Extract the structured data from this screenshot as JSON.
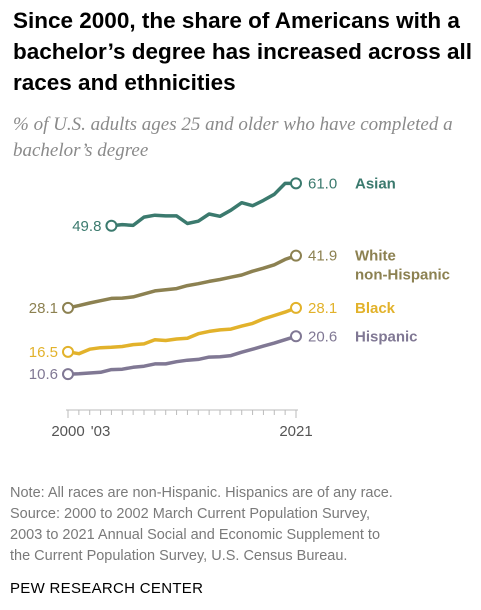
{
  "title": "Since 2000, the share of Americans with a bachelor’s degree has increased across all races and ethnicities",
  "subtitle": "% of U.S. adults ages 25 and older who have completed a bachelor’s degree",
  "note_lines": [
    "Note: All races are non-Hispanic. Hispanics are of any race.",
    "Source: 2000 to 2002 March Current Population Survey,",
    "2003 to 2021 Annual Social and Economic Supplement to",
    "the Current Population Survey, U.S. Census Bureau."
  ],
  "source_org": "PEW RESEARCH CENTER",
  "chart_data": {
    "type": "line",
    "x": [
      2000,
      2001,
      2002,
      2003,
      2004,
      2005,
      2006,
      2007,
      2008,
      2009,
      2010,
      2011,
      2012,
      2013,
      2014,
      2015,
      2016,
      2017,
      2018,
      2019,
      2020,
      2021
    ],
    "xtick_labels": [
      {
        "year": 2000,
        "label": "2000"
      },
      {
        "year": 2003,
        "label": "'03"
      },
      {
        "year": 2021,
        "label": "2021"
      }
    ],
    "ylim": [
      8,
      64
    ],
    "grid": false,
    "series": [
      {
        "name": "Asian",
        "color": "#3b7a6e",
        "start_label": "49.8",
        "end_label": "61.0",
        "values": [
          null,
          null,
          null,
          null,
          49.8,
          50.1,
          49.9,
          52.1,
          52.6,
          52.4,
          52.4,
          50.4,
          51.0,
          52.9,
          52.3,
          53.9,
          55.9,
          55.1,
          56.5,
          58.1,
          61.0,
          61.0
        ]
      },
      {
        "name": "White non-Hispanic",
        "name_lines": [
          "White",
          "non-Hispanic"
        ],
        "color": "#8c8151",
        "start_label": "28.1",
        "end_label": "41.9",
        "values": [
          28.1,
          28.7,
          29.4,
          30.0,
          30.6,
          30.7,
          31.0,
          31.8,
          32.6,
          32.9,
          33.2,
          34.0,
          34.5,
          35.1,
          35.6,
          36.2,
          36.8,
          37.8,
          38.6,
          39.5,
          40.9,
          41.9
        ]
      },
      {
        "name": "Black",
        "color": "#e2b22b",
        "start_label": "16.5",
        "end_label": "28.1",
        "values": [
          16.5,
          16.0,
          17.2,
          17.6,
          17.7,
          17.9,
          18.4,
          18.6,
          19.7,
          19.5,
          19.9,
          20.1,
          21.3,
          21.9,
          22.3,
          22.5,
          23.3,
          24.0,
          25.2,
          26.1,
          27.0,
          28.1
        ]
      },
      {
        "name": "Hispanic",
        "color": "#807894",
        "start_label": "10.6",
        "end_label": "20.6",
        "values": [
          10.6,
          10.7,
          10.9,
          11.1,
          11.8,
          11.9,
          12.4,
          12.7,
          13.3,
          13.3,
          13.9,
          14.3,
          14.5,
          15.1,
          15.2,
          15.5,
          16.4,
          17.2,
          18.0,
          18.8,
          19.7,
          20.6
        ]
      }
    ]
  }
}
